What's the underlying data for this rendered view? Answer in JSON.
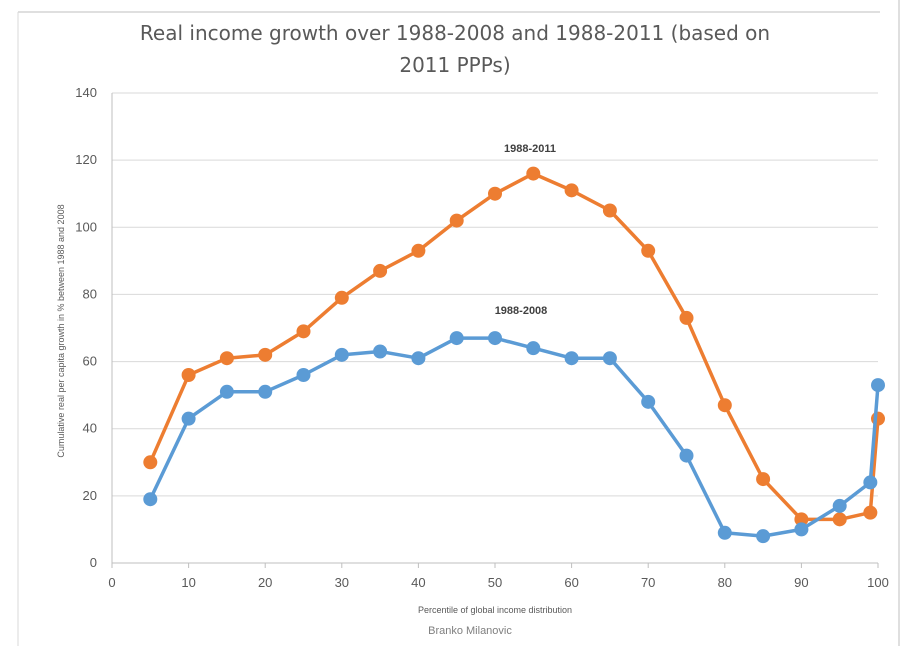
{
  "chart_data": {
    "type": "line",
    "title_lines": [
      "Real income growth over 1988-2008 and 1988-2011  (based on",
      "2011 PPPs)"
    ],
    "xlabel": "Percentile of global income distribution",
    "ylabel": "Cumulative real per capita growth in % between 1988 and 2008",
    "credit": "Branko Milanovic",
    "xlim": [
      0,
      100
    ],
    "ylim": [
      0,
      140
    ],
    "x_ticks": [
      0,
      10,
      20,
      30,
      40,
      50,
      60,
      70,
      80,
      90,
      100
    ],
    "y_ticks": [
      0,
      20,
      40,
      60,
      80,
      100,
      120,
      140
    ],
    "grid": true,
    "legend": "inline labels",
    "series": [
      {
        "name": "1988-2011",
        "color": "#ed7d31",
        "points": [
          [
            5,
            30
          ],
          [
            10,
            56
          ],
          [
            15,
            61
          ],
          [
            20,
            62
          ],
          [
            25,
            69
          ],
          [
            30,
            79
          ],
          [
            35,
            87
          ],
          [
            40,
            93
          ],
          [
            45,
            102
          ],
          [
            50,
            110
          ],
          [
            55,
            116
          ],
          [
            60,
            111
          ],
          [
            65,
            105
          ],
          [
            70,
            93
          ],
          [
            75,
            73
          ],
          [
            80,
            47
          ],
          [
            85,
            25
          ],
          [
            90,
            13
          ],
          [
            95,
            13
          ],
          [
            99,
            15
          ],
          [
            100,
            43
          ]
        ]
      },
      {
        "name": "1988-2008",
        "color": "#5b9bd5",
        "points": [
          [
            5,
            19
          ],
          [
            10,
            43
          ],
          [
            15,
            51
          ],
          [
            20,
            51
          ],
          [
            25,
            56
          ],
          [
            30,
            62
          ],
          [
            35,
            63
          ],
          [
            40,
            61
          ],
          [
            45,
            67
          ],
          [
            50,
            67
          ],
          [
            55,
            64
          ],
          [
            60,
            61
          ],
          [
            65,
            61
          ],
          [
            70,
            48
          ],
          [
            75,
            32
          ],
          [
            80,
            9
          ],
          [
            85,
            8
          ],
          [
            90,
            10
          ],
          [
            95,
            17
          ],
          [
            99,
            24
          ],
          [
            100,
            53
          ]
        ]
      }
    ]
  }
}
